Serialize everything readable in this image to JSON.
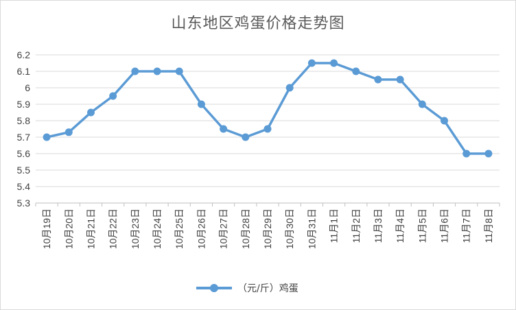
{
  "chart_data": {
    "type": "line",
    "title": "山东地区鸡蛋价格走势图",
    "xlabel": "",
    "ylabel": "",
    "categories": [
      "10月19日",
      "10月20日",
      "10月21日",
      "10月22日",
      "10月23日",
      "10月24日",
      "10月25日",
      "10月26日",
      "10月27日",
      "10月28日",
      "10月29日",
      "10月30日",
      "10月31日",
      "11月1日",
      "11月2日",
      "11月3日",
      "11月4日",
      "11月5日",
      "11月6日",
      "11月7日",
      "11月8日"
    ],
    "series": [
      {
        "name": "（元/斤）鸡蛋",
        "color": "#5b9bd5",
        "values": [
          5.7,
          5.73,
          5.85,
          5.95,
          6.1,
          6.1,
          6.1,
          5.9,
          5.75,
          5.7,
          5.75,
          6.0,
          6.15,
          6.15,
          6.1,
          6.05,
          6.05,
          5.9,
          5.8,
          5.6,
          5.6
        ]
      }
    ],
    "yticks": [
      "5.3",
      "5.4",
      "5.5",
      "5.6",
      "5.7",
      "5.8",
      "5.9",
      "6",
      "6.1",
      "6.2"
    ],
    "ylim": [
      5.3,
      6.2
    ],
    "grid": true,
    "legend": "bottom"
  }
}
